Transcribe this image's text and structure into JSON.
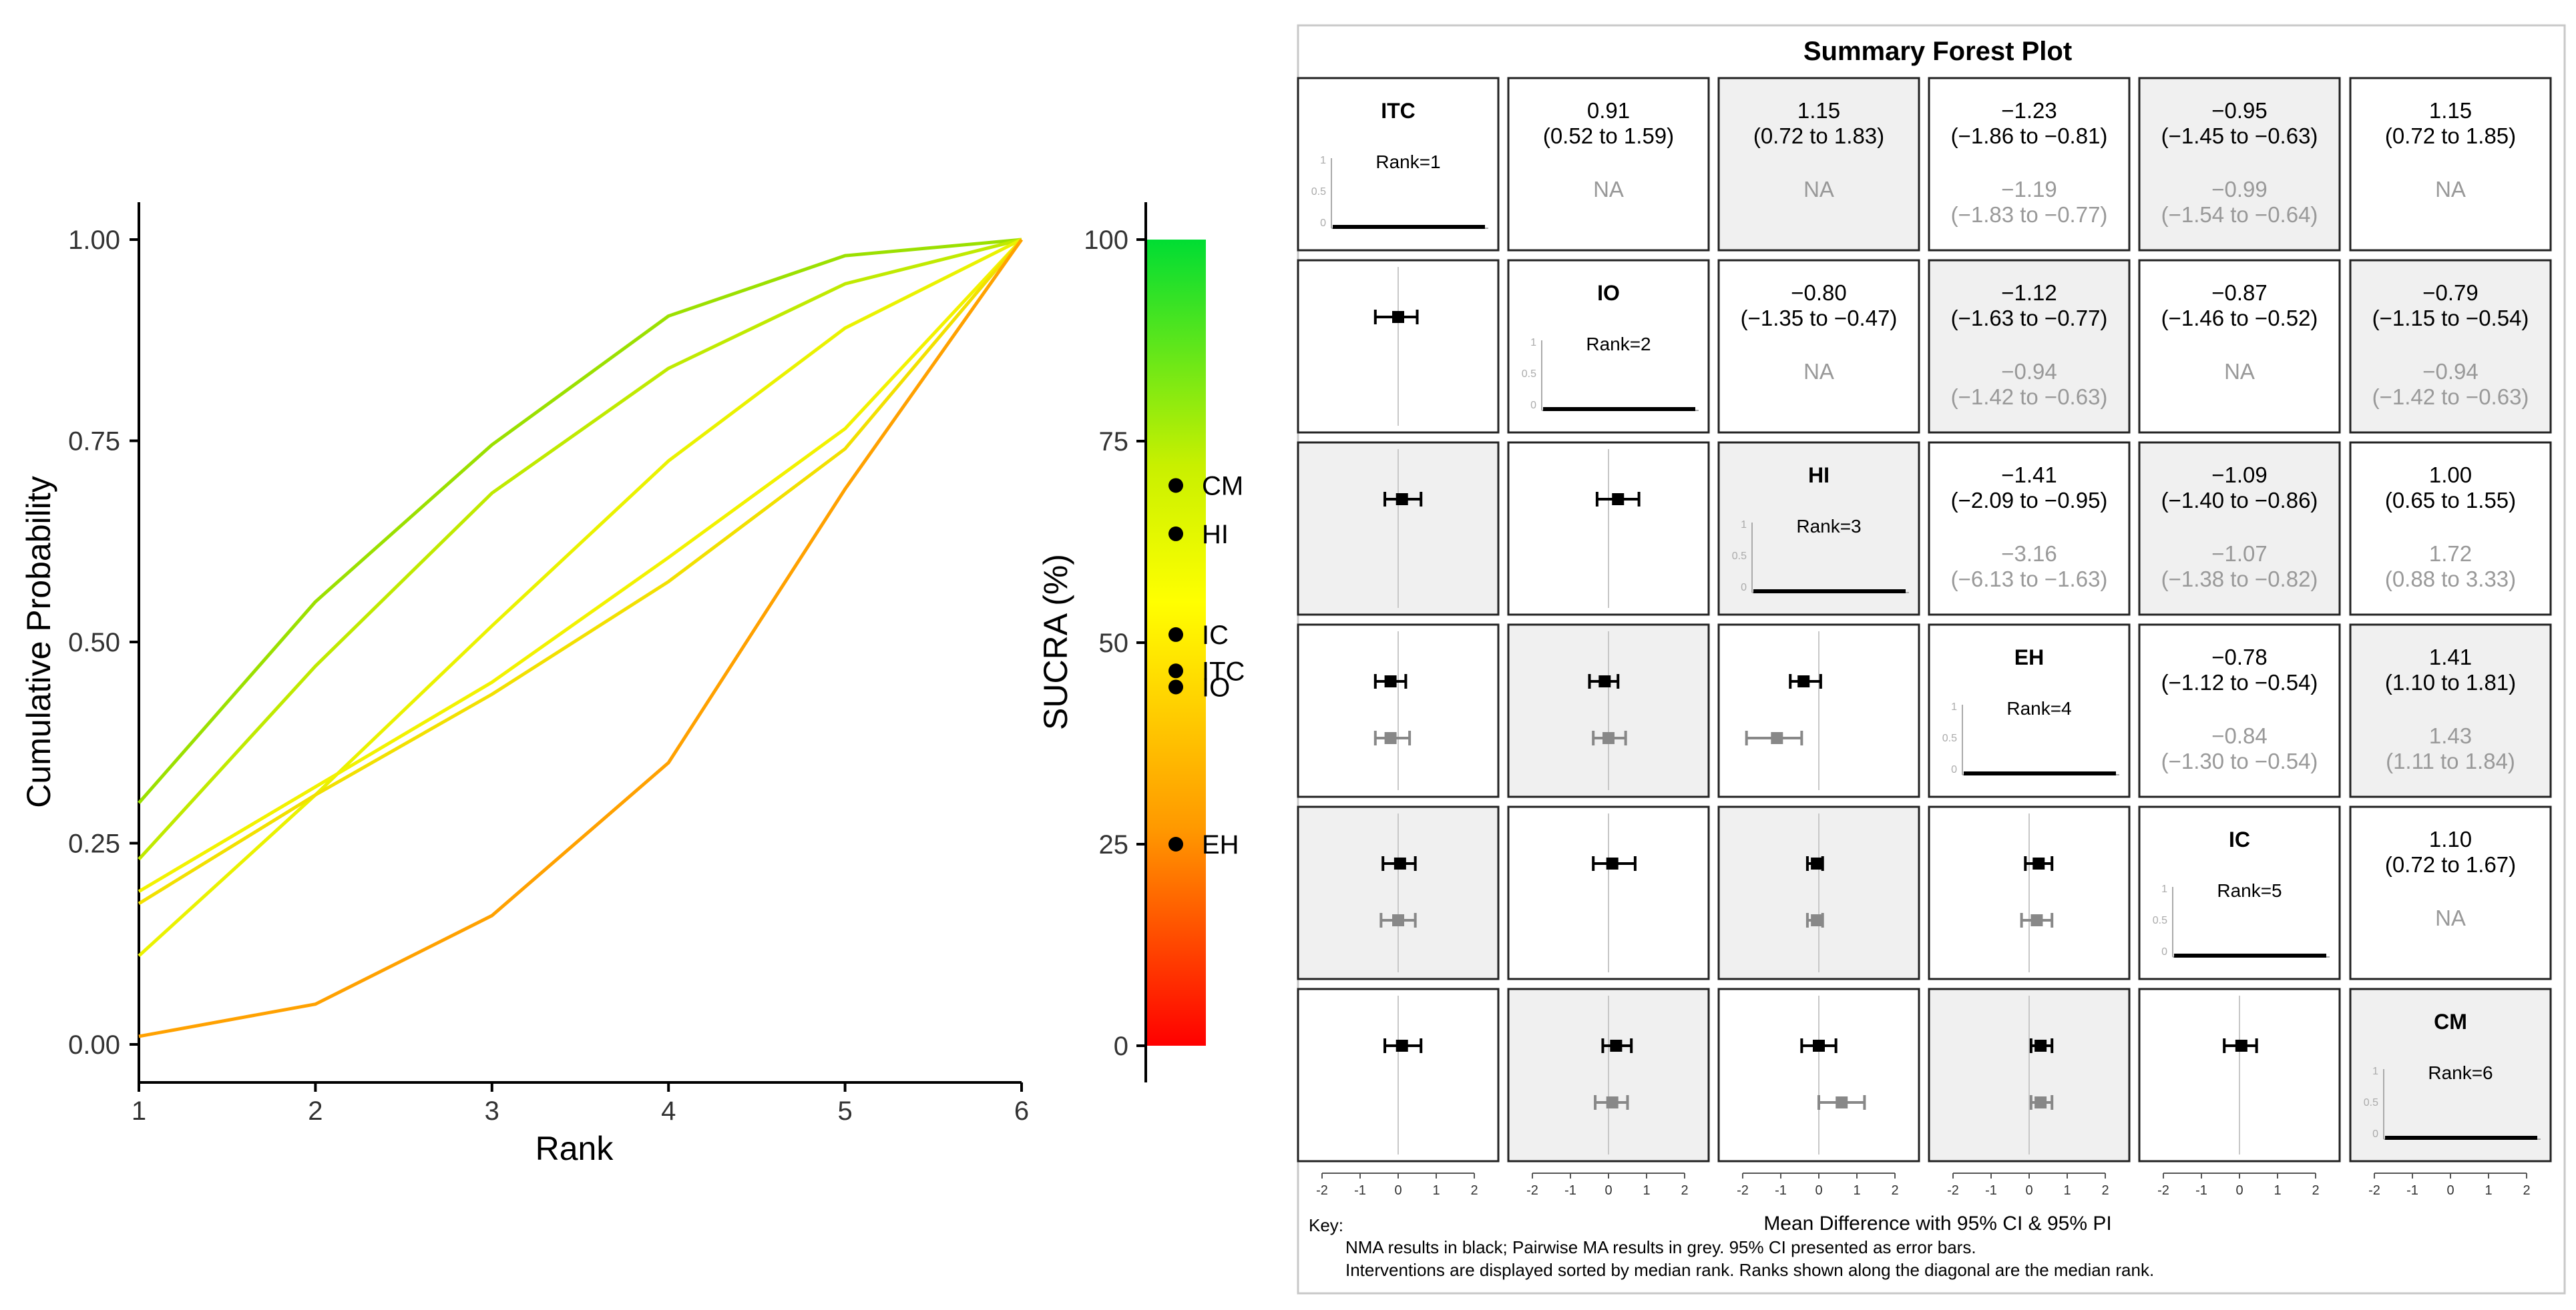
{
  "chart_data": [
    {
      "type": "line",
      "title": "",
      "xlabel": "Rank",
      "ylabel": "Cumulative Probability",
      "x": [
        1,
        2,
        3,
        4,
        5,
        6
      ],
      "xticks": [
        "1",
        "2",
        "3",
        "4",
        "5",
        "6"
      ],
      "yticks": [
        "0.00",
        "0.25",
        "0.50",
        "0.75",
        "1.00"
      ],
      "xlim": [
        1,
        6
      ],
      "ylim": [
        0,
        1
      ],
      "series": [
        {
          "name": "CM",
          "color": "#9be000",
          "values": [
            0.3,
            0.55,
            0.745,
            0.905,
            0.98,
            1.0
          ]
        },
        {
          "name": "HI",
          "color": "#c0ea00",
          "values": [
            0.23,
            0.47,
            0.685,
            0.84,
            0.945,
            1.0
          ]
        },
        {
          "name": "IC",
          "color": "#eaf200",
          "values": [
            0.11,
            0.31,
            0.52,
            0.725,
            0.89,
            1.0
          ]
        },
        {
          "name": "ITC",
          "color": "#f2f200",
          "values": [
            0.19,
            0.32,
            0.45,
            0.605,
            0.765,
            1.0
          ]
        },
        {
          "name": "IO",
          "color": "#f2e000",
          "values": [
            0.175,
            0.31,
            0.435,
            0.575,
            0.74,
            1.0
          ]
        },
        {
          "name": "EH",
          "color": "#ffa100",
          "values": [
            0.01,
            0.05,
            0.16,
            0.35,
            0.69,
            1.0
          ]
        }
      ]
    },
    {
      "type": "scatter",
      "title": "",
      "ylabel": "SUCRA (%)",
      "yticks": [
        "0",
        "25",
        "50",
        "75",
        "100"
      ],
      "ylim": [
        0,
        100
      ],
      "colorbar": {
        "stops": [
          "#ff0000",
          "#ff9900",
          "#ffff00",
          "#c8f000",
          "#00dd33"
        ]
      },
      "points": [
        {
          "label": "CM",
          "value": 69.5
        },
        {
          "label": "HI",
          "value": 63.5
        },
        {
          "label": "IC",
          "value": 51.0
        },
        {
          "label": "ITC",
          "value": 46.5
        },
        {
          "label": "IO",
          "value": 44.5
        },
        {
          "label": "EH",
          "value": 25.0
        }
      ]
    },
    {
      "type": "table",
      "title": "Summary Forest Plot",
      "xlabel": "Mean Difference with 95% CI & 95% PI",
      "axis_ticks": [
        "-2",
        "-1",
        "0",
        "1",
        "2"
      ],
      "axis_range": [
        -2,
        2
      ],
      "treatments": [
        "ITC",
        "IO",
        "HI",
        "EH",
        "IC",
        "CM"
      ],
      "ranks": [
        "Rank=1",
        "Rank=2",
        "Rank=3",
        "Rank=4",
        "Rank=5",
        "Rank=6"
      ],
      "mini_ticks": [
        "1",
        "0.5",
        "0"
      ],
      "upper": [
        {
          "row": 0,
          "col": 1,
          "nma": "0.91",
          "nma_ci": "(0.52 to 1.59)",
          "pw": "NA",
          "pw_ci": ""
        },
        {
          "row": 0,
          "col": 2,
          "nma": "1.15",
          "nma_ci": "(0.72 to 1.83)",
          "pw": "NA",
          "pw_ci": ""
        },
        {
          "row": 0,
          "col": 3,
          "nma": "−1.23",
          "nma_ci": "(−1.86 to −0.81)",
          "pw": "−1.19",
          "pw_ci": "(−1.83 to −0.77)"
        },
        {
          "row": 0,
          "col": 4,
          "nma": "−0.95",
          "nma_ci": "(−1.45 to −0.63)",
          "pw": "−0.99",
          "pw_ci": "(−1.54 to −0.64)"
        },
        {
          "row": 0,
          "col": 5,
          "nma": "1.15",
          "nma_ci": "(0.72 to 1.85)",
          "pw": "NA",
          "pw_ci": ""
        },
        {
          "row": 1,
          "col": 2,
          "nma": "−0.80",
          "nma_ci": "(−1.35 to −0.47)",
          "pw": "NA",
          "pw_ci": ""
        },
        {
          "row": 1,
          "col": 3,
          "nma": "−1.12",
          "nma_ci": "(−1.63 to −0.77)",
          "pw": "−0.94",
          "pw_ci": "(−1.42 to −0.63)"
        },
        {
          "row": 1,
          "col": 4,
          "nma": "−0.87",
          "nma_ci": "(−1.46 to −0.52)",
          "pw": "NA",
          "pw_ci": ""
        },
        {
          "row": 1,
          "col": 5,
          "nma": "−0.79",
          "nma_ci": "(−1.15 to −0.54)",
          "pw": "−0.94",
          "pw_ci": "(−1.42 to −0.63)"
        },
        {
          "row": 2,
          "col": 3,
          "nma": "−1.41",
          "nma_ci": "(−2.09 to −0.95)",
          "pw": "−3.16",
          "pw_ci": "(−6.13 to −1.63)"
        },
        {
          "row": 2,
          "col": 4,
          "nma": "−1.09",
          "nma_ci": "(−1.40 to −0.86)",
          "pw": "−1.07",
          "pw_ci": "(−1.38 to −0.82)"
        },
        {
          "row": 2,
          "col": 5,
          "nma": "1.00",
          "nma_ci": "(0.65 to 1.55)",
          "pw": "1.72",
          "pw_ci": "(0.88 to 3.33)"
        },
        {
          "row": 3,
          "col": 4,
          "nma": "−0.78",
          "nma_ci": "(−1.12 to −0.54)",
          "pw": "−0.84",
          "pw_ci": "(−1.30 to −0.54)"
        },
        {
          "row": 3,
          "col": 5,
          "nma": "1.41",
          "nma_ci": "(1.10 to 1.81)",
          "pw": "1.43",
          "pw_ci": "(1.11 to 1.84)"
        },
        {
          "row": 4,
          "col": 5,
          "nma": "1.10",
          "nma_ci": "(0.72 to 1.67)",
          "pw": "NA",
          "pw_ci": ""
        }
      ],
      "lower": [
        {
          "row": 1,
          "col": 0,
          "nma": [
            0.0,
            -0.6,
            0.5
          ],
          "pw": null
        },
        {
          "row": 2,
          "col": 0,
          "nma": [
            0.1,
            -0.35,
            0.6
          ],
          "pw": null
        },
        {
          "row": 2,
          "col": 1,
          "nma": [
            0.25,
            -0.3,
            0.8
          ],
          "pw": null
        },
        {
          "row": 3,
          "col": 0,
          "nma": [
            -0.2,
            -0.6,
            0.2
          ],
          "pw": [
            -0.2,
            -0.6,
            0.3
          ]
        },
        {
          "row": 3,
          "col": 1,
          "nma": [
            -0.1,
            -0.5,
            0.25
          ],
          "pw": [
            0.0,
            -0.4,
            0.45
          ]
        },
        {
          "row": 3,
          "col": 2,
          "nma": [
            -0.4,
            -0.75,
            0.05
          ],
          "pw": [
            -1.1,
            -1.9,
            -0.45
          ]
        },
        {
          "row": 4,
          "col": 0,
          "nma": [
            0.05,
            -0.4,
            0.45
          ],
          "pw": [
            0.0,
            -0.45,
            0.45
          ]
        },
        {
          "row": 4,
          "col": 1,
          "nma": [
            0.1,
            -0.4,
            0.7
          ],
          "pw": null
        },
        {
          "row": 4,
          "col": 2,
          "nma": [
            -0.05,
            -0.3,
            0.1
          ],
          "pw": [
            -0.05,
            -0.3,
            0.1
          ]
        },
        {
          "row": 4,
          "col": 3,
          "nma": [
            0.25,
            -0.1,
            0.6
          ],
          "pw": [
            0.2,
            -0.2,
            0.6
          ]
        },
        {
          "row": 5,
          "col": 0,
          "nma": [
            0.1,
            -0.35,
            0.6
          ],
          "pw": null
        },
        {
          "row": 5,
          "col": 1,
          "nma": [
            0.2,
            -0.15,
            0.6
          ],
          "pw": [
            0.1,
            -0.35,
            0.5
          ]
        },
        {
          "row": 5,
          "col": 2,
          "nma": [
            0.0,
            -0.45,
            0.45
          ],
          "pw": [
            0.6,
            0.0,
            1.2
          ]
        },
        {
          "row": 5,
          "col": 3,
          "nma": [
            0.3,
            0.05,
            0.6
          ],
          "pw": [
            0.3,
            0.05,
            0.6
          ]
        },
        {
          "row": 5,
          "col": 4,
          "nma": [
            0.05,
            -0.4,
            0.45
          ],
          "pw": null
        }
      ],
      "shaded": [
        [
          0,
          2
        ],
        [
          0,
          4
        ],
        [
          1,
          3
        ],
        [
          1,
          5
        ],
        [
          2,
          0
        ],
        [
          2,
          2
        ],
        [
          2,
          4
        ],
        [
          3,
          1
        ],
        [
          3,
          5
        ],
        [
          4,
          0
        ],
        [
          4,
          2
        ],
        [
          5,
          1
        ],
        [
          5,
          3
        ],
        [
          5,
          5
        ]
      ],
      "key": {
        "title": "Key:",
        "lines": [
          "NMA results in black; Pairwise MA results in grey. 95% CI presented as error bars.",
          "Interventions are displayed sorted by median rank. Ranks shown along the diagonal are the median rank."
        ]
      }
    }
  ]
}
